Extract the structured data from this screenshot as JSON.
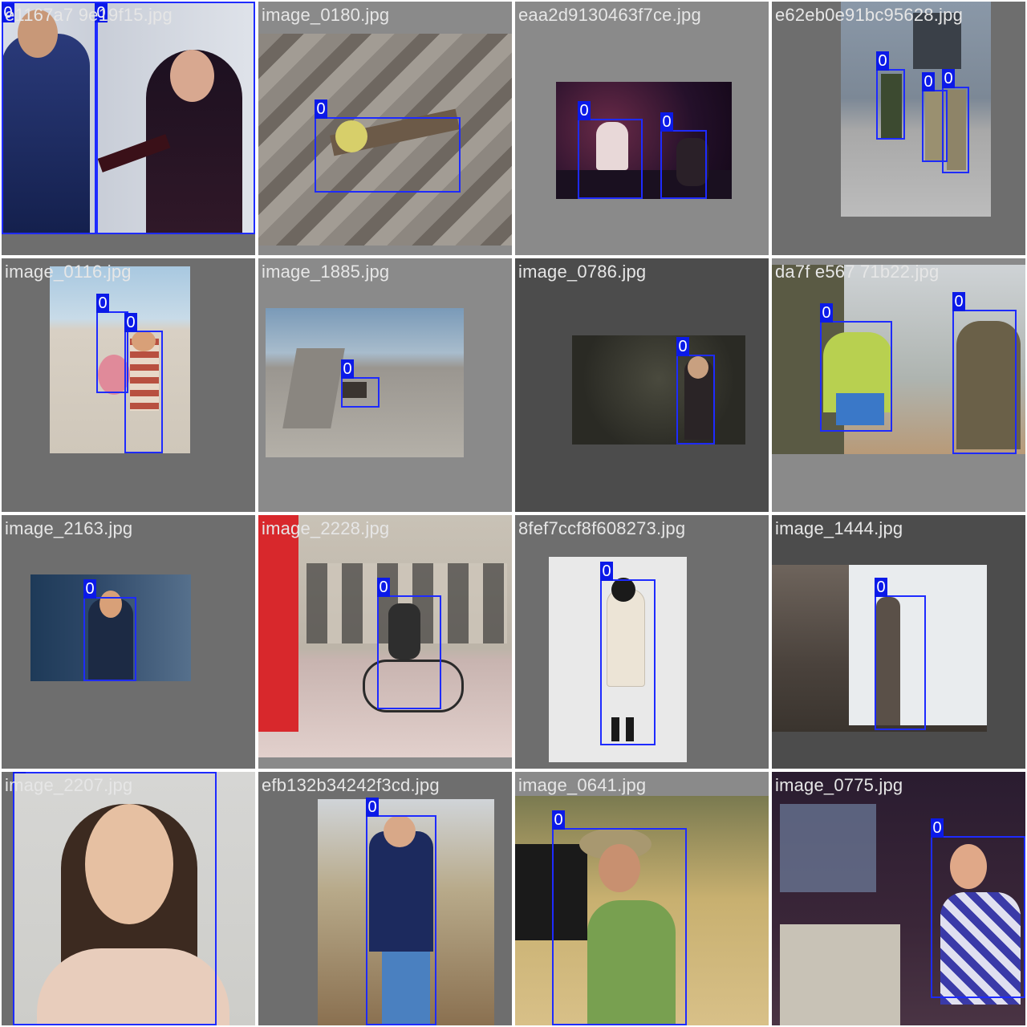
{
  "colors": {
    "box_stroke": "#1e2bff",
    "tag_fill": "#0b1ae8",
    "filename_text": "#e6e6e6",
    "gap": "#ffffff"
  },
  "tiles": [
    {
      "filename": "e1167a7 9e19f15.jpg",
      "labels": [
        "0",
        "0"
      ]
    },
    {
      "filename": "image_0180.jpg",
      "labels": [
        "0"
      ]
    },
    {
      "filename": "eaa2d9130463f7ce.jpg",
      "labels": [
        "0",
        "0"
      ]
    },
    {
      "filename": "e62eb0e91bc95628.jpg",
      "labels": [
        "0",
        "0",
        "0"
      ]
    },
    {
      "filename": "image_0116.jpg",
      "labels": [
        "0",
        "0"
      ]
    },
    {
      "filename": "image_1885.jpg",
      "labels": [
        "0"
      ]
    },
    {
      "filename": "image_0786.jpg",
      "labels": [
        "0"
      ]
    },
    {
      "filename": "da7f e567 71b22.jpg",
      "labels": [
        "0",
        "0"
      ]
    },
    {
      "filename": "image_2163.jpg",
      "labels": [
        "0"
      ]
    },
    {
      "filename": "image_2228.jpg",
      "labels": [
        "0"
      ]
    },
    {
      "filename": "8fef7ccf8f608273.jpg",
      "labels": [
        "0"
      ]
    },
    {
      "filename": "image_1444.jpg",
      "labels": [
        "0"
      ]
    },
    {
      "filename": "image_2207.jpg",
      "labels": [
        "0"
      ]
    },
    {
      "filename": "efb132b34242f3cd.jpg",
      "labels": [
        "0"
      ]
    },
    {
      "filename": "image_0641.jpg",
      "labels": [
        "0"
      ]
    },
    {
      "filename": "image_0775.jpg",
      "labels": [
        "0"
      ]
    }
  ]
}
